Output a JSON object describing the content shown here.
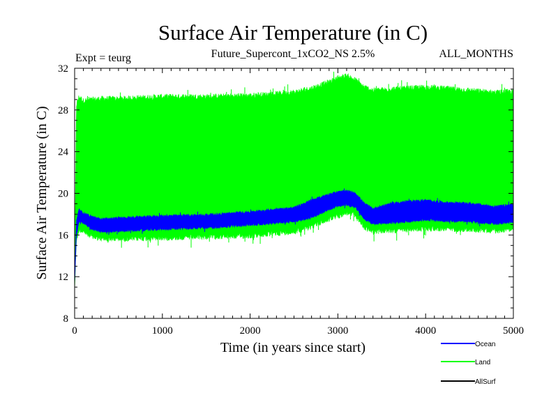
{
  "chart_data": {
    "type": "area",
    "title": "Surface Air Temperature (in C)",
    "experiment": "Expt = teurg",
    "subtitle": "Future_Supercont_1xCO2_NS 2.5%",
    "months": "ALL_MONTHS",
    "xlabel": "Time (in years since start)",
    "ylabel": "Surface Air Temperature (in C)",
    "xlim": [
      0,
      5000
    ],
    "ylim": [
      8,
      32
    ],
    "x_ticks": [
      "0",
      "1000",
      "2000",
      "3000",
      "4000",
      "5000"
    ],
    "y_ticks": [
      "8",
      "12",
      "16",
      "20",
      "24",
      "28",
      "32"
    ],
    "grid": false,
    "legend_position": "bottom-right, outside plot",
    "series": [
      {
        "name": "Ocean",
        "color": "#0000ff",
        "x": [
          0,
          20,
          50,
          100,
          200,
          300,
          500,
          1000,
          1500,
          2000,
          2500,
          2700,
          2900,
          3000,
          3100,
          3200,
          3300,
          3400,
          3600,
          3800,
          4000,
          4200,
          4500,
          4800,
          5000
        ],
        "lower": [
          11.2,
          16.0,
          17.3,
          17.3,
          16.7,
          16.4,
          16.5,
          16.7,
          16.8,
          17.1,
          17.4,
          17.8,
          18.6,
          18.9,
          19.0,
          18.8,
          17.7,
          17.2,
          17.3,
          17.4,
          17.6,
          17.5,
          17.4,
          17.2,
          17.4
        ],
        "upper": [
          11.8,
          17.2,
          18.3,
          18.0,
          17.6,
          17.4,
          17.5,
          17.7,
          17.8,
          18.1,
          18.5,
          19.2,
          19.8,
          20.0,
          20.1,
          19.9,
          18.9,
          18.4,
          18.9,
          19.1,
          19.2,
          19.0,
          18.9,
          18.6,
          18.8
        ]
      },
      {
        "name": "Land",
        "color": "#00ff00",
        "x": [
          0,
          20,
          50,
          100,
          200,
          300,
          500,
          1000,
          1500,
          2000,
          2500,
          2700,
          2900,
          3000,
          3100,
          3200,
          3300,
          3400,
          3600,
          3800,
          4000,
          4200,
          4500,
          4800,
          5000
        ],
        "lower": [
          11.0,
          15.8,
          16.8,
          16.6,
          16.1,
          15.9,
          15.9,
          16.0,
          16.1,
          16.2,
          16.6,
          17.1,
          17.8,
          18.1,
          18.4,
          18.2,
          17.0,
          16.6,
          16.7,
          16.8,
          16.9,
          16.9,
          16.8,
          16.7,
          16.9
        ],
        "upper": [
          12.0,
          28.2,
          29.0,
          28.6,
          28.7,
          28.8,
          28.8,
          29.0,
          29.0,
          29.1,
          29.4,
          29.8,
          30.4,
          30.8,
          31.0,
          30.6,
          29.9,
          29.6,
          29.7,
          29.8,
          29.9,
          29.8,
          29.6,
          29.4,
          29.5
        ]
      },
      {
        "name": "AllSurf",
        "color": "#000000",
        "x": [],
        "lower": [],
        "upper": []
      }
    ]
  }
}
